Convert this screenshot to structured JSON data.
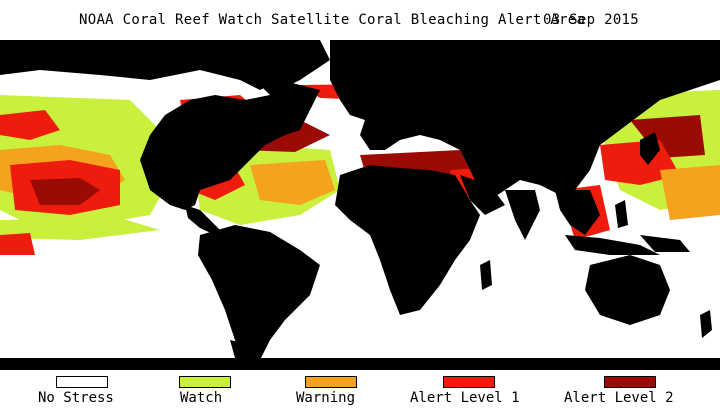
{
  "title": {
    "main": "NOAA Coral Reef Watch Satellite Coral Bleaching Alert Area",
    "date": "03 Sep 2015"
  },
  "colors": {
    "land": "#000000",
    "no_stress": "#ffffff",
    "watch": "#c8f03c",
    "warning": "#f5a21e",
    "alert1": "#ee1c0c",
    "alert2": "#9c0a06"
  },
  "legend": [
    {
      "label": "No Stress",
      "color": "#ffffff"
    },
    {
      "label": "Watch",
      "color": "#c8f03c"
    },
    {
      "label": "Warning",
      "color": "#f5a21e"
    },
    {
      "label": "Alert Level 1",
      "color": "#ee1c0c"
    },
    {
      "label": "Alert Level 2",
      "color": "#9c0a06"
    }
  ]
}
